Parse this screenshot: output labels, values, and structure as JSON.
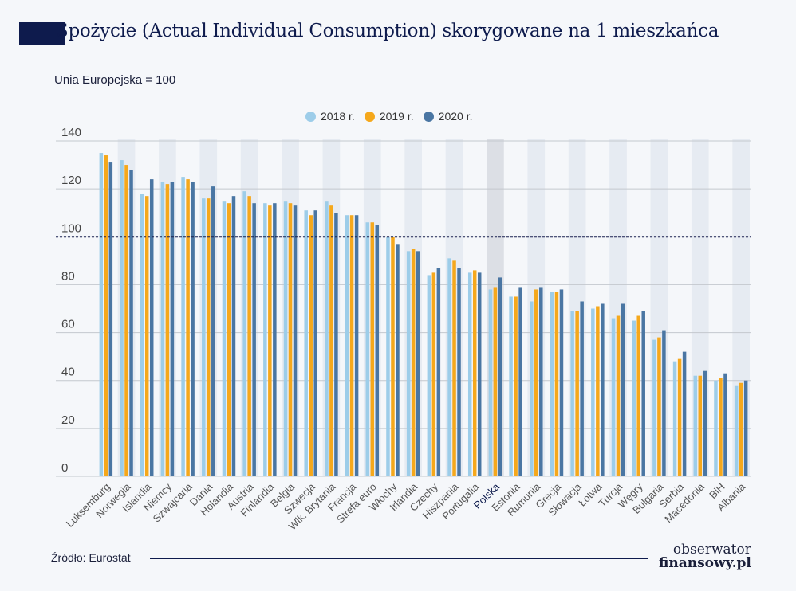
{
  "title": "Spożycie (Actual Individual Consumption) skorygowane na 1 mieszkańca",
  "source": "Źródło: Eurostat",
  "logo": {
    "line1": "obserwator",
    "line2": "finansowy.pl"
  },
  "colors": {
    "2018": "#9dcde9",
    "2019": "#f5a81c",
    "2020": "#4a76a3",
    "title": "#0e1b4d",
    "highlight_band": "#dcdfe5",
    "band": "#e6ebf2"
  },
  "chart_data": {
    "type": "bar",
    "title": "",
    "ylabel": "Unia Europejska = 100",
    "xlabel": "",
    "ylim": [
      0,
      140
    ],
    "yticks": [
      0,
      20,
      40,
      60,
      80,
      100,
      120,
      140
    ],
    "grid": true,
    "reference_line": 100,
    "legend_position": "top",
    "highlight_category": "Polska",
    "categories": [
      "Luksemburg",
      "Norwegia",
      "Islandia",
      "Niemcy",
      "Szwajcaria",
      "Dania",
      "Holandia",
      "Austria",
      "Finlandia",
      "Belgia",
      "Szwecja",
      "Wlk. Brytania",
      "Francja",
      "Strefa euro",
      "Włochy",
      "Irlandia",
      "Czechy",
      "Hiszpania",
      "Portugalia",
      "Polska",
      "Estonia",
      "Rumunia",
      "Grecja",
      "Słowacja",
      "Łotwa",
      "Turcja",
      "Węgry",
      "Bułgaria",
      "Serbia",
      "Macedonia",
      "BiH",
      "Albania"
    ],
    "series": [
      {
        "name": "2018 r.",
        "values": [
          135,
          132,
          118,
          123,
          125,
          116,
          115,
          119,
          114,
          115,
          111,
          115,
          109,
          106,
          100,
          94,
          84,
          91,
          85,
          78,
          75,
          73,
          77,
          69,
          70,
          66,
          65,
          57,
          48,
          42,
          40,
          38
        ]
      },
      {
        "name": "2019 r.",
        "values": [
          134,
          130,
          117,
          122,
          124,
          116,
          114,
          117,
          113,
          114,
          109,
          113,
          109,
          106,
          100,
          95,
          85,
          90,
          86,
          79,
          75,
          78,
          77,
          69,
          71,
          67,
          67,
          58,
          49,
          42,
          41,
          39
        ]
      },
      {
        "name": "2020 r.",
        "values": [
          131,
          128,
          124,
          123,
          123,
          121,
          117,
          114,
          114,
          113,
          111,
          110,
          109,
          105,
          97,
          94,
          87,
          87,
          85,
          83,
          79,
          79,
          78,
          73,
          72,
          72,
          69,
          61,
          52,
          44,
          43,
          40
        ]
      }
    ]
  }
}
